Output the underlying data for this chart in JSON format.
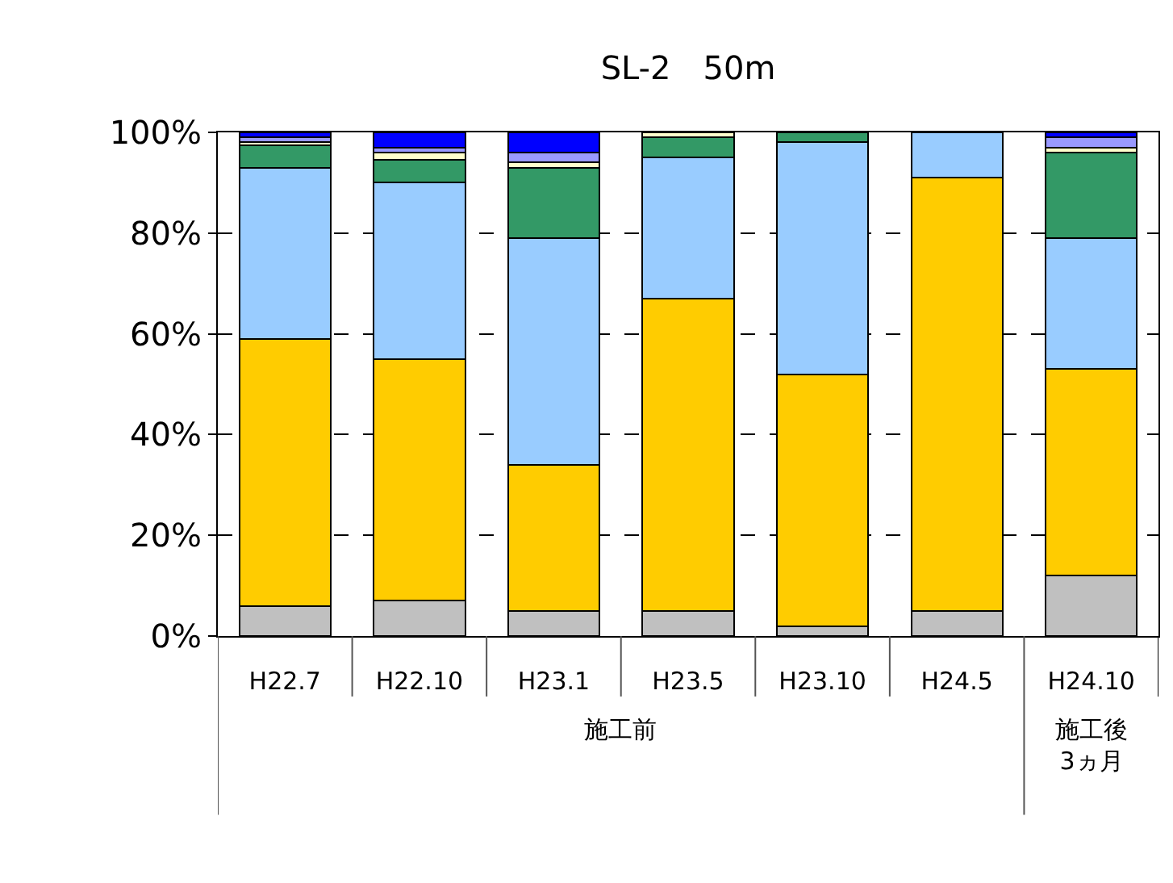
{
  "chart_data": {
    "type": "bar",
    "stacked": true,
    "title": "SL-2　50m",
    "categories": [
      "H22.7",
      "H22.10",
      "H23.1",
      "H23.5",
      "H23.10",
      "H24.5",
      "H24.10"
    ],
    "series": [
      {
        "color": "#c0c0c0",
        "values": [
          6,
          7,
          5,
          5,
          2,
          5,
          12
        ]
      },
      {
        "color": "#ffcc00",
        "values": [
          53,
          48,
          29,
          62,
          50,
          86,
          41
        ]
      },
      {
        "color": "#99ccff",
        "values": [
          34,
          35,
          45,
          28,
          46,
          9,
          26
        ]
      },
      {
        "color": "#339966",
        "values": [
          4.5,
          4.5,
          14,
          4,
          2,
          null,
          17
        ]
      },
      {
        "color": "#ffffcc",
        "values": [
          0.5,
          1.5,
          1,
          1,
          null,
          null,
          1
        ]
      },
      {
        "color": "#9999ff",
        "values": [
          1,
          1,
          2,
          null,
          null,
          null,
          2
        ]
      },
      {
        "color": "#0000ff",
        "values": [
          1,
          3,
          4,
          null,
          null,
          null,
          1
        ]
      }
    ],
    "ylim": [
      0,
      100
    ],
    "yticks": [
      {
        "value": 0,
        "label": "0%"
      },
      {
        "value": 20,
        "label": "20%"
      },
      {
        "value": 40,
        "label": "40%"
      },
      {
        "value": 60,
        "label": "60%"
      },
      {
        "value": 80,
        "label": "80%"
      },
      {
        "value": 100,
        "label": "100%"
      }
    ],
    "grid": "y",
    "annotations": [
      "施工前",
      "施工後\n3ヵ月"
    ]
  }
}
